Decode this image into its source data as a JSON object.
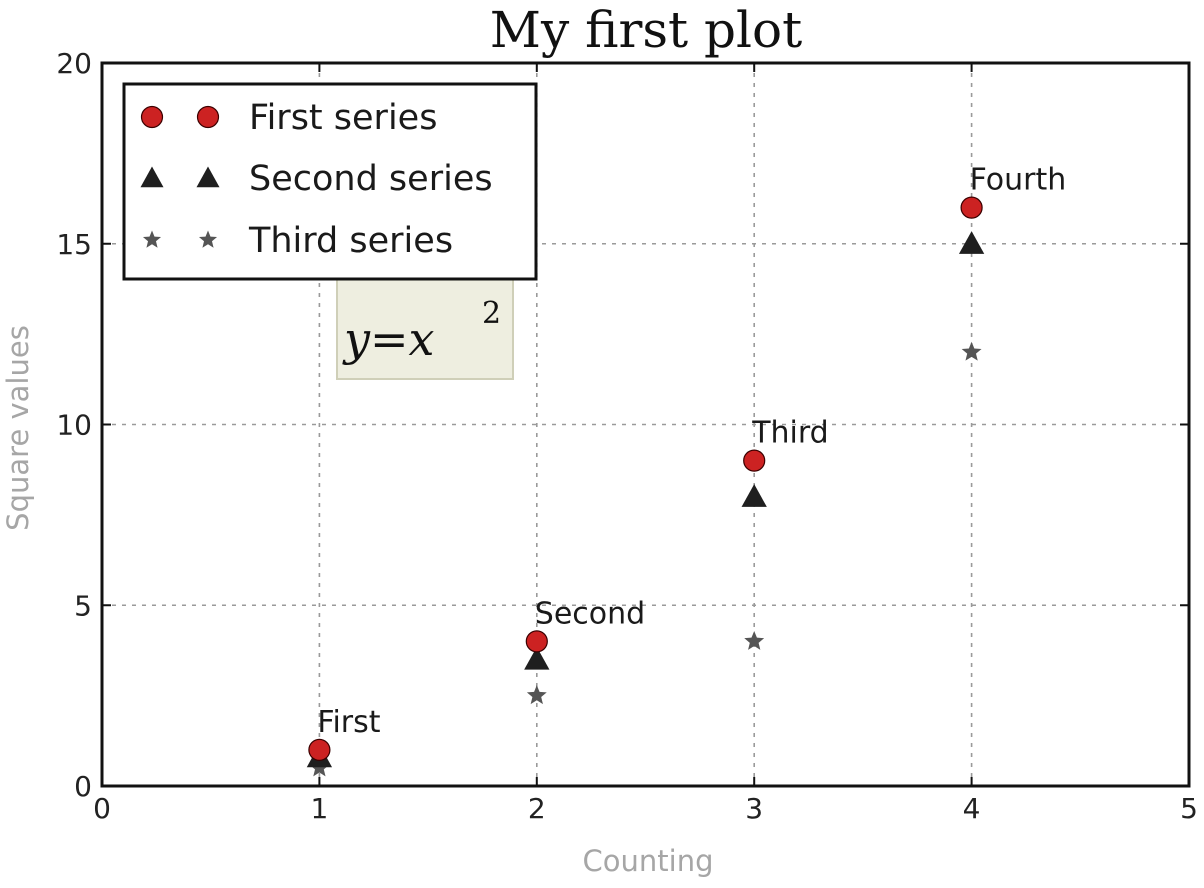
{
  "chart_data": {
    "type": "scatter",
    "title": "My first plot",
    "xlabel": "Counting",
    "ylabel": "Square values",
    "xlim": [
      0,
      5
    ],
    "ylim": [
      0,
      20
    ],
    "x_ticks": [
      "0",
      "1",
      "2",
      "3",
      "4",
      "5"
    ],
    "y_ticks": [
      "0",
      "5",
      "10",
      "15",
      "20"
    ],
    "grid": true,
    "legend_position": "top-left",
    "series": [
      {
        "name": "First series",
        "marker": "circle",
        "color": "#cc2222",
        "x": [
          1,
          2,
          3,
          4
        ],
        "y": [
          1,
          4,
          9,
          16
        ]
      },
      {
        "name": "Second series",
        "marker": "triangle",
        "color": "#1f1f1f",
        "x": [
          1,
          2,
          3,
          4
        ],
        "y": [
          0.8,
          3.5,
          8,
          15
        ]
      },
      {
        "name": "Third series",
        "marker": "star",
        "color": "#555555",
        "x": [
          1,
          2,
          3,
          4
        ],
        "y": [
          0.5,
          2.5,
          4,
          12
        ]
      }
    ],
    "annotations": [
      {
        "text": "First",
        "x": 1,
        "y": 1
      },
      {
        "text": "Second",
        "x": 2,
        "y": 4
      },
      {
        "text": "Third",
        "x": 3,
        "y": 9
      },
      {
        "text": "Fourth",
        "x": 4,
        "y": 16
      }
    ],
    "formula": {
      "base": "y=x",
      "exponent": "2",
      "box_color": "#eeeee0",
      "x": 1.5,
      "y": 12.5
    }
  }
}
